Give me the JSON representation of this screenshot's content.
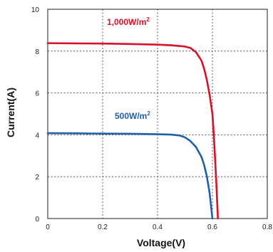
{
  "chart_data": {
    "type": "line",
    "title": "",
    "xlabel": "Voltage(V)",
    "ylabel": "Current(A)",
    "xlim": [
      0,
      0.8
    ],
    "ylim": [
      0,
      10
    ],
    "x_ticks": [
      "0",
      "0.2",
      "0.4",
      "0.6",
      "0.8"
    ],
    "y_ticks": [
      "0",
      "2",
      "4",
      "6",
      "8",
      "10"
    ],
    "grid": true,
    "series": [
      {
        "name": "1,000W/m",
        "superscript": "2",
        "color": "#d8102a",
        "x": [
          0,
          0.1,
          0.2,
          0.3,
          0.4,
          0.45,
          0.5,
          0.52,
          0.54,
          0.56,
          0.57,
          0.58,
          0.59,
          0.6,
          0.605,
          0.61,
          0.615,
          0.62
        ],
        "y": [
          8.38,
          8.37,
          8.36,
          8.34,
          8.31,
          8.28,
          8.22,
          8.15,
          7.95,
          7.55,
          7.15,
          6.6,
          5.9,
          5.0,
          4.0,
          2.8,
          1.5,
          0
        ]
      },
      {
        "name": "500W/m",
        "superscript": "2",
        "color": "#1f5fa8",
        "x": [
          0,
          0.1,
          0.2,
          0.3,
          0.4,
          0.45,
          0.48,
          0.5,
          0.52,
          0.54,
          0.56,
          0.57,
          0.58,
          0.59,
          0.6
        ],
        "y": [
          4.08,
          4.07,
          4.06,
          4.05,
          4.03,
          4.01,
          3.97,
          3.88,
          3.7,
          3.42,
          2.95,
          2.55,
          2.0,
          1.2,
          0
        ]
      }
    ]
  }
}
